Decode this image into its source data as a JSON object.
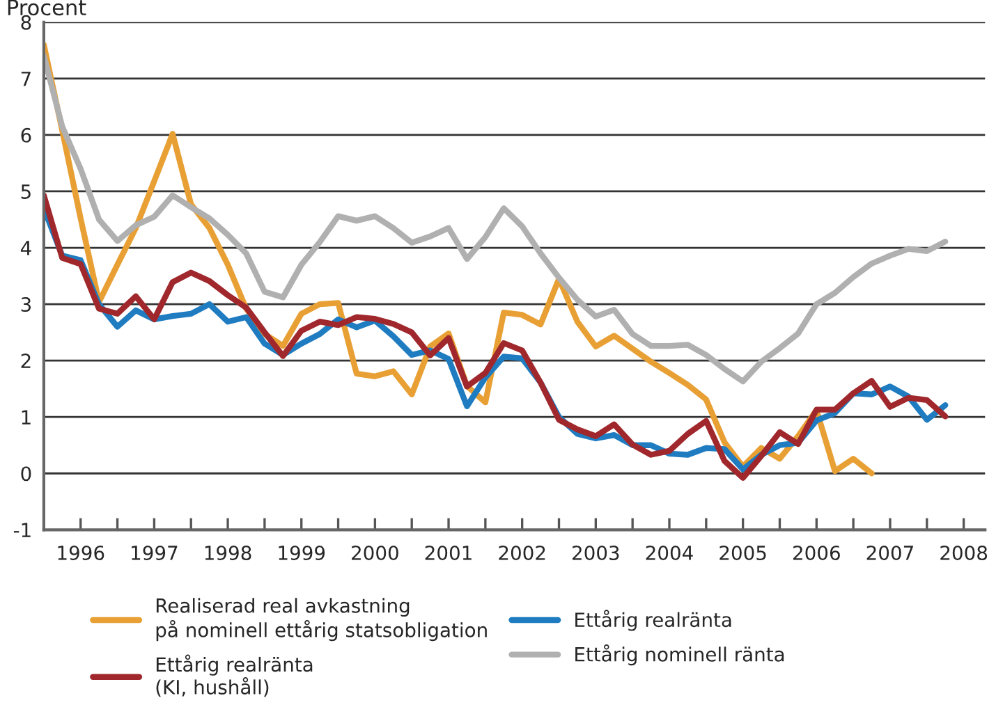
{
  "chart_data": {
    "type": "line",
    "ylabel": "Procent",
    "ylim": [
      -1,
      8
    ],
    "yticks": [
      -1,
      0,
      1,
      2,
      3,
      4,
      5,
      6,
      7,
      8
    ],
    "xlim": [
      1996,
      2008.79
    ],
    "xticks": [
      {
        "value": 1996.5,
        "label": "1996"
      },
      {
        "value": 1997,
        "label": null
      },
      {
        "value": 1997.5,
        "label": "1997"
      },
      {
        "value": 1998,
        "label": null
      },
      {
        "value": 1998.5,
        "label": "1998"
      },
      {
        "value": 1999,
        "label": null
      },
      {
        "value": 1999.5,
        "label": "1999"
      },
      {
        "value": 2000,
        "label": null
      },
      {
        "value": 2000.5,
        "label": "2000"
      },
      {
        "value": 2001,
        "label": null
      },
      {
        "value": 2001.5,
        "label": "2001"
      },
      {
        "value": 2002,
        "label": null
      },
      {
        "value": 2002.5,
        "label": "2002"
      },
      {
        "value": 2003,
        "label": null
      },
      {
        "value": 2003.5,
        "label": "2003"
      },
      {
        "value": 2004,
        "label": null
      },
      {
        "value": 2004.5,
        "label": "2004"
      },
      {
        "value": 2005,
        "label": null
      },
      {
        "value": 2005.5,
        "label": "2005"
      },
      {
        "value": 2006,
        "label": null
      },
      {
        "value": 2006.5,
        "label": "2006"
      },
      {
        "value": 2007,
        "label": null
      },
      {
        "value": 2007.5,
        "label": "2007"
      },
      {
        "value": 2008,
        "label": null
      },
      {
        "value": 2008.5,
        "label": "2008"
      }
    ],
    "x": [
      1996.0,
      1996.25,
      1996.5,
      1996.75,
      1997.0,
      1997.25,
      1997.5,
      1997.75,
      1998.0,
      1998.25,
      1998.5,
      1998.75,
      1999.0,
      1999.25,
      1999.5,
      1999.75,
      2000.0,
      2000.25,
      2000.5,
      2000.75,
      2001.0,
      2001.25,
      2001.5,
      2001.75,
      2002.0,
      2002.25,
      2002.5,
      2002.75,
      2003.0,
      2003.25,
      2003.5,
      2003.75,
      2004.0,
      2004.25,
      2004.5,
      2004.75,
      2005.0,
      2005.25,
      2005.5,
      2005.75,
      2006.0,
      2006.25,
      2006.5,
      2006.75,
      2007.0,
      2007.25,
      2007.5,
      2007.75,
      2008.0,
      2008.25
    ],
    "grid": "y",
    "legend": "bottom",
    "line_style": "solid",
    "marker": "none",
    "series": [
      {
        "name": "Realiserad real avkastning\npå nominell ettårig statsobligation",
        "color": "#e8a035",
        "values": [
          7.6,
          6.08,
          4.52,
          3.04,
          3.7,
          4.35,
          5.18,
          6.02,
          4.77,
          4.35,
          3.7,
          2.92,
          2.47,
          2.26,
          2.83,
          3.0,
          3.02,
          1.77,
          1.72,
          1.81,
          1.4,
          2.25,
          2.48,
          1.55,
          1.26,
          2.85,
          2.81,
          2.64,
          3.45,
          2.69,
          2.25,
          2.44,
          2.21,
          1.98,
          1.78,
          1.57,
          1.31,
          0.55,
          0.12,
          0.45,
          0.26,
          0.66,
          1.12,
          0.04,
          0.26,
          0.0,
          null,
          null,
          null,
          null
        ]
      },
      {
        "name": "Ettårig realränta",
        "color": "#1f7cc1",
        "values": [
          4.7,
          3.86,
          3.78,
          3.0,
          2.6,
          2.89,
          2.73,
          2.79,
          2.83,
          3.0,
          2.69,
          2.77,
          2.3,
          2.1,
          2.3,
          2.47,
          2.73,
          2.59,
          2.71,
          2.43,
          2.1,
          2.18,
          2.03,
          1.19,
          1.7,
          2.07,
          2.04,
          1.61,
          1.0,
          0.7,
          0.62,
          0.68,
          0.5,
          0.5,
          0.35,
          0.33,
          0.45,
          0.43,
          0.07,
          0.33,
          0.5,
          0.54,
          0.94,
          1.07,
          1.42,
          1.4,
          1.54,
          1.36,
          0.95,
          1.21
        ]
      },
      {
        "name": "Ettårig realränta\n(KI, hushåll)",
        "color": "#a0282d",
        "values": [
          4.93,
          3.82,
          3.71,
          2.92,
          2.83,
          3.14,
          2.73,
          3.39,
          3.56,
          3.41,
          3.16,
          2.94,
          2.5,
          2.08,
          2.53,
          2.69,
          2.63,
          2.77,
          2.74,
          2.65,
          2.5,
          2.09,
          2.4,
          1.54,
          1.78,
          2.31,
          2.18,
          1.61,
          0.95,
          0.78,
          0.66,
          0.87,
          0.51,
          0.33,
          0.4,
          0.7,
          0.93,
          0.22,
          -0.08,
          0.31,
          0.73,
          0.52,
          1.13,
          1.13,
          1.42,
          1.64,
          1.18,
          1.34,
          1.3,
          1.01
        ]
      },
      {
        "name": "Ettårig nominell ränta",
        "color": "#b0b0b0",
        "values": [
          7.4,
          6.15,
          5.4,
          4.5,
          4.12,
          4.4,
          4.55,
          4.93,
          4.72,
          4.52,
          4.23,
          3.9,
          3.22,
          3.12,
          3.7,
          4.1,
          4.56,
          4.48,
          4.56,
          4.35,
          4.09,
          4.2,
          4.35,
          3.8,
          4.19,
          4.7,
          4.38,
          3.9,
          3.47,
          3.08,
          2.78,
          2.9,
          2.47,
          2.26,
          2.26,
          2.28,
          2.1,
          1.85,
          1.63,
          1.98,
          2.22,
          2.48,
          3.0,
          3.2,
          3.48,
          3.72,
          3.86,
          3.98,
          3.94,
          4.11
        ]
      }
    ]
  }
}
